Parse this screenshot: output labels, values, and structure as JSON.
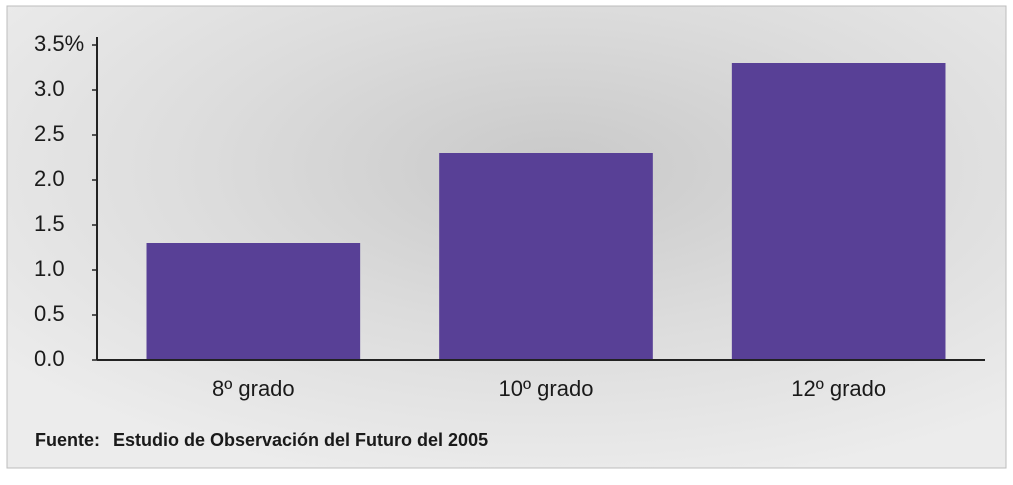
{
  "chart_data": {
    "type": "bar",
    "categories": [
      "8º grado",
      "10º grado",
      "12º grado"
    ],
    "values": [
      1.3,
      2.3,
      3.3
    ],
    "color": "#584096",
    "ylim": [
      0,
      3.5
    ],
    "yticks": [
      {
        "value": 0,
        "label": "0.0"
      },
      0.5,
      {
        "value": 1,
        "label": "1.0"
      },
      1.5,
      {
        "value": 2,
        "label": "2.0"
      },
      2.5,
      {
        "value": 3,
        "label": "3.0"
      },
      {
        "value": 3.5,
        "label": "3.5%"
      }
    ],
    "grid": false,
    "source_label": "Fuente:",
    "source": "Estudio de Observación del Futuro del 2005"
  }
}
